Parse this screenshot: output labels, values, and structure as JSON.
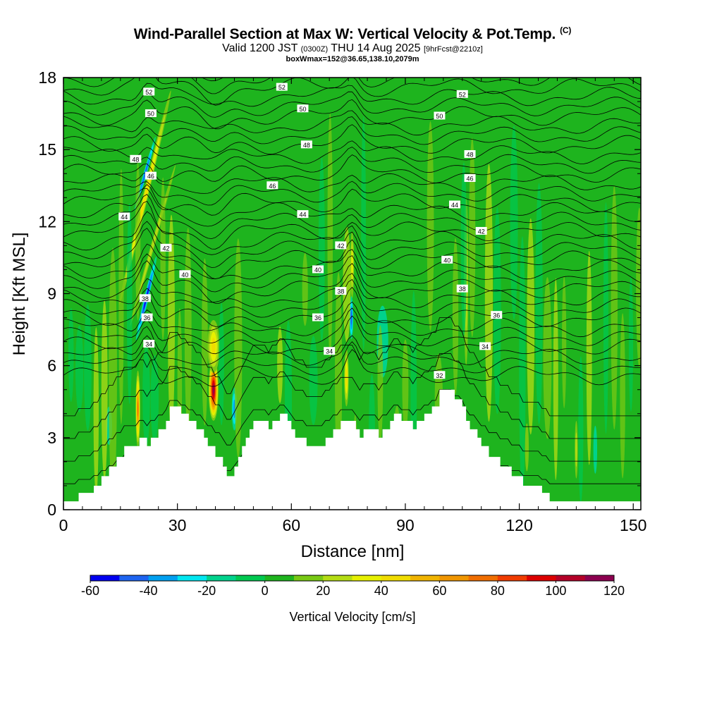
{
  "title": {
    "main": "Wind-Parallel Section at Max W: Vertical Velocity & Pot.Temp.",
    "copyright": "(C)",
    "valid_prefix": "Valid 1200 JST",
    "valid_utc": "(0300Z)",
    "valid_date": "THU 14 Aug 2025",
    "forecast": "[9hrFcst@2210z]",
    "boxinfo": "boxWmax=152@36.65,138.10,2079m"
  },
  "chart_data": {
    "type": "heatmap",
    "xlabel": "Distance [nm]",
    "ylabel": "Height [Kft MSL]",
    "xlim": [
      0,
      152
    ],
    "ylim": [
      0,
      18
    ],
    "xticks": [
      0,
      30,
      60,
      90,
      120,
      150
    ],
    "yticks": [
      0,
      3,
      6,
      9,
      12,
      15,
      18
    ],
    "colorbar": {
      "label": "Vertical Velocity [cm/s]",
      "ticks": [
        -60,
        -40,
        -20,
        0,
        20,
        40,
        60,
        80,
        100,
        120
      ],
      "levels": [
        -60,
        -50,
        -40,
        -30,
        -20,
        -10,
        0,
        10,
        20,
        30,
        40,
        50,
        60,
        70,
        80,
        90,
        100,
        110,
        120
      ],
      "colors": [
        "#0000f0",
        "#1e64f0",
        "#00a0f0",
        "#00e6f0",
        "#00d28c",
        "#00c850",
        "#1eb41e",
        "#78c814",
        "#b4dc14",
        "#e6f000",
        "#f0dc00",
        "#f0b400",
        "#f09600",
        "#f06e00",
        "#f03c00",
        "#dc0000",
        "#b40028",
        "#8c0050",
        "#640078"
      ]
    },
    "background_w": 5,
    "terrain": [
      [
        0,
        0.35
      ],
      [
        4,
        0.35
      ],
      [
        4,
        0.7
      ],
      [
        8,
        0.7
      ],
      [
        8,
        1
      ],
      [
        10,
        1
      ],
      [
        10,
        1.4
      ],
      [
        12,
        1.4
      ],
      [
        12,
        1.8
      ],
      [
        14,
        1.8
      ],
      [
        14,
        2.2
      ],
      [
        16,
        2.2
      ],
      [
        16,
        2.65
      ],
      [
        20,
        2.65
      ],
      [
        20,
        3
      ],
      [
        22,
        3
      ],
      [
        22,
        2.65
      ],
      [
        23,
        2.65
      ],
      [
        23,
        3
      ],
      [
        25,
        3
      ],
      [
        25,
        3.35
      ],
      [
        27,
        3.35
      ],
      [
        27,
        3.7
      ],
      [
        28,
        3.7
      ],
      [
        28,
        4.3
      ],
      [
        31,
        4.3
      ],
      [
        31,
        4
      ],
      [
        33,
        4
      ],
      [
        33,
        3.7
      ],
      [
        35,
        3.7
      ],
      [
        35,
        3.35
      ],
      [
        37,
        3.35
      ],
      [
        37,
        3
      ],
      [
        38,
        3
      ],
      [
        38,
        2.65
      ],
      [
        40,
        2.65
      ],
      [
        40,
        2.2
      ],
      [
        42,
        2.2
      ],
      [
        42,
        1.8
      ],
      [
        43,
        1.8
      ],
      [
        43,
        1.4
      ],
      [
        45,
        1.4
      ],
      [
        45,
        1.8
      ],
      [
        46,
        1.8
      ],
      [
        46,
        2.2
      ],
      [
        47,
        2.2
      ],
      [
        47,
        2.65
      ],
      [
        48,
        2.65
      ],
      [
        48,
        3
      ],
      [
        49,
        3
      ],
      [
        49,
        3.35
      ],
      [
        50,
        3.35
      ],
      [
        50,
        3.7
      ],
      [
        54,
        3.7
      ],
      [
        54,
        3.35
      ],
      [
        55,
        3.35
      ],
      [
        55,
        3.7
      ],
      [
        57,
        3.7
      ],
      [
        57,
        4
      ],
      [
        59,
        4
      ],
      [
        59,
        3.7
      ],
      [
        60,
        3.7
      ],
      [
        60,
        3.35
      ],
      [
        61,
        3.35
      ],
      [
        61,
        3
      ],
      [
        64,
        3
      ],
      [
        64,
        2.65
      ],
      [
        69,
        2.65
      ],
      [
        69,
        3
      ],
      [
        71,
        3
      ],
      [
        71,
        3.35
      ],
      [
        73,
        3.35
      ],
      [
        73,
        3.7
      ],
      [
        77,
        3.7
      ],
      [
        77,
        3.35
      ],
      [
        78,
        3.35
      ],
      [
        78,
        3
      ],
      [
        79,
        3
      ],
      [
        79,
        3.35
      ],
      [
        83,
        3.35
      ],
      [
        83,
        3
      ],
      [
        84,
        3
      ],
      [
        84,
        3.35
      ],
      [
        86,
        3.35
      ],
      [
        86,
        3.7
      ],
      [
        87,
        3.7
      ],
      [
        87,
        4
      ],
      [
        89,
        4
      ],
      [
        89,
        3.7
      ],
      [
        92,
        3.7
      ],
      [
        92,
        3.35
      ],
      [
        93,
        3.35
      ],
      [
        93,
        3.7
      ],
      [
        95,
        3.7
      ],
      [
        95,
        4
      ],
      [
        97,
        4
      ],
      [
        97,
        4.3
      ],
      [
        99,
        4.3
      ],
      [
        99,
        5
      ],
      [
        103,
        5
      ],
      [
        103,
        4.6
      ],
      [
        105,
        4.6
      ],
      [
        105,
        4.3
      ],
      [
        106,
        4.3
      ],
      [
        106,
        3.7
      ],
      [
        107,
        3.7
      ],
      [
        107,
        3.35
      ],
      [
        109,
        3.35
      ],
      [
        109,
        3
      ],
      [
        110,
        3
      ],
      [
        110,
        2.65
      ],
      [
        112,
        2.65
      ],
      [
        112,
        2.2
      ],
      [
        115,
        2.2
      ],
      [
        115,
        1.8
      ],
      [
        118,
        1.8
      ],
      [
        118,
        1.4
      ],
      [
        121,
        1.4
      ],
      [
        121,
        1
      ],
      [
        126,
        1
      ],
      [
        126,
        0.7
      ],
      [
        128,
        0.7
      ],
      [
        128,
        0.35
      ],
      [
        152,
        0.35
      ]
    ],
    "updrafts": [
      {
        "x": 19.6,
        "y": 4.2,
        "sx": 0.6,
        "sy": 1.6,
        "w": 75
      },
      {
        "x": 21.5,
        "y": 13,
        "sx": 0.7,
        "sy": 4.6,
        "w": 42,
        "tilt": 0.3
      },
      {
        "x": 23.5,
        "y": 11,
        "sx": 0.5,
        "sy": 3.5,
        "w": 25,
        "tilt": 0.35
      },
      {
        "x": 39.5,
        "y": 5,
        "sx": 1.3,
        "sy": 1.3,
        "w": 118
      },
      {
        "x": 39.5,
        "y": 6.8,
        "sx": 1.6,
        "sy": 1.1,
        "w": 45
      },
      {
        "x": 74.5,
        "y": 5.5,
        "sx": 0.6,
        "sy": 1.2,
        "w": 45
      },
      {
        "x": 76,
        "y": 10.2,
        "sx": 0.5,
        "sy": 1.4,
        "w": 32
      },
      {
        "x": 106,
        "y": 9.5,
        "sx": 0.6,
        "sy": 3.5,
        "w": 22
      },
      {
        "x": 135,
        "y": 2.5,
        "sx": 0.4,
        "sy": 1.2,
        "w": 25
      },
      {
        "x": 122,
        "y": 2.6,
        "sx": 0.5,
        "sy": 1,
        "w": 18
      }
    ],
    "downdrafts": [
      {
        "x": 21.5,
        "y": 14,
        "sx": 0.45,
        "sy": 1.6,
        "w": -45,
        "tilt": 0.35
      },
      {
        "x": 21.8,
        "y": 8.8,
        "sx": 0.6,
        "sy": 1.8,
        "w": -55,
        "tilt": 0.3
      },
      {
        "x": 45,
        "y": 4.2,
        "sx": 0.7,
        "sy": 0.9,
        "w": -35
      },
      {
        "x": 75.8,
        "y": 8,
        "sx": 0.5,
        "sy": 0.9,
        "w": -45
      },
      {
        "x": 12,
        "y": 3.5,
        "sx": 0.8,
        "sy": 0.8,
        "w": -18
      },
      {
        "x": 140,
        "y": 2.5,
        "sx": 0.5,
        "sy": 1,
        "w": -18
      },
      {
        "x": 84,
        "y": 7,
        "sx": 1.5,
        "sy": 1.5,
        "w": -15
      }
    ],
    "isentropes": [
      32,
      34,
      36,
      38,
      40,
      42,
      44,
      46,
      48,
      50,
      52
    ],
    "isentrope_labels": [
      {
        "x": 22.5,
        "y": 17.4,
        "t": "52"
      },
      {
        "x": 57.5,
        "y": 17.6,
        "t": "52"
      },
      {
        "x": 105,
        "y": 17.3,
        "t": "52"
      },
      {
        "x": 23,
        "y": 16.5,
        "t": "50"
      },
      {
        "x": 63,
        "y": 16.7,
        "t": "50"
      },
      {
        "x": 99,
        "y": 16.4,
        "t": "50"
      },
      {
        "x": 19,
        "y": 14.6,
        "t": "48"
      },
      {
        "x": 64,
        "y": 15.2,
        "t": "48"
      },
      {
        "x": 107,
        "y": 14.8,
        "t": "48"
      },
      {
        "x": 23,
        "y": 13.9,
        "t": "46"
      },
      {
        "x": 55,
        "y": 13.5,
        "t": "46"
      },
      {
        "x": 107,
        "y": 13.8,
        "t": "46"
      },
      {
        "x": 16,
        "y": 12.2,
        "t": "44"
      },
      {
        "x": 63,
        "y": 12.3,
        "t": "44"
      },
      {
        "x": 103,
        "y": 12.7,
        "t": "44"
      },
      {
        "x": 27,
        "y": 10.9,
        "t": "42"
      },
      {
        "x": 73,
        "y": 11,
        "t": "42"
      },
      {
        "x": 110,
        "y": 11.6,
        "t": "42"
      },
      {
        "x": 32,
        "y": 9.8,
        "t": "40"
      },
      {
        "x": 67,
        "y": 10,
        "t": "40"
      },
      {
        "x": 101,
        "y": 10.4,
        "t": "40"
      },
      {
        "x": 21.5,
        "y": 8.8,
        "t": "38"
      },
      {
        "x": 73,
        "y": 9.1,
        "t": "38"
      },
      {
        "x": 105,
        "y": 9.2,
        "t": "38"
      },
      {
        "x": 22,
        "y": 8,
        "t": "36"
      },
      {
        "x": 67,
        "y": 8,
        "t": "36"
      },
      {
        "x": 114,
        "y": 8.1,
        "t": "36"
      },
      {
        "x": 22.5,
        "y": 6.9,
        "t": "34"
      },
      {
        "x": 70,
        "y": 6.6,
        "t": "34"
      },
      {
        "x": 111,
        "y": 6.8,
        "t": "34"
      },
      {
        "x": 99,
        "y": 5.6,
        "t": "32"
      }
    ]
  }
}
